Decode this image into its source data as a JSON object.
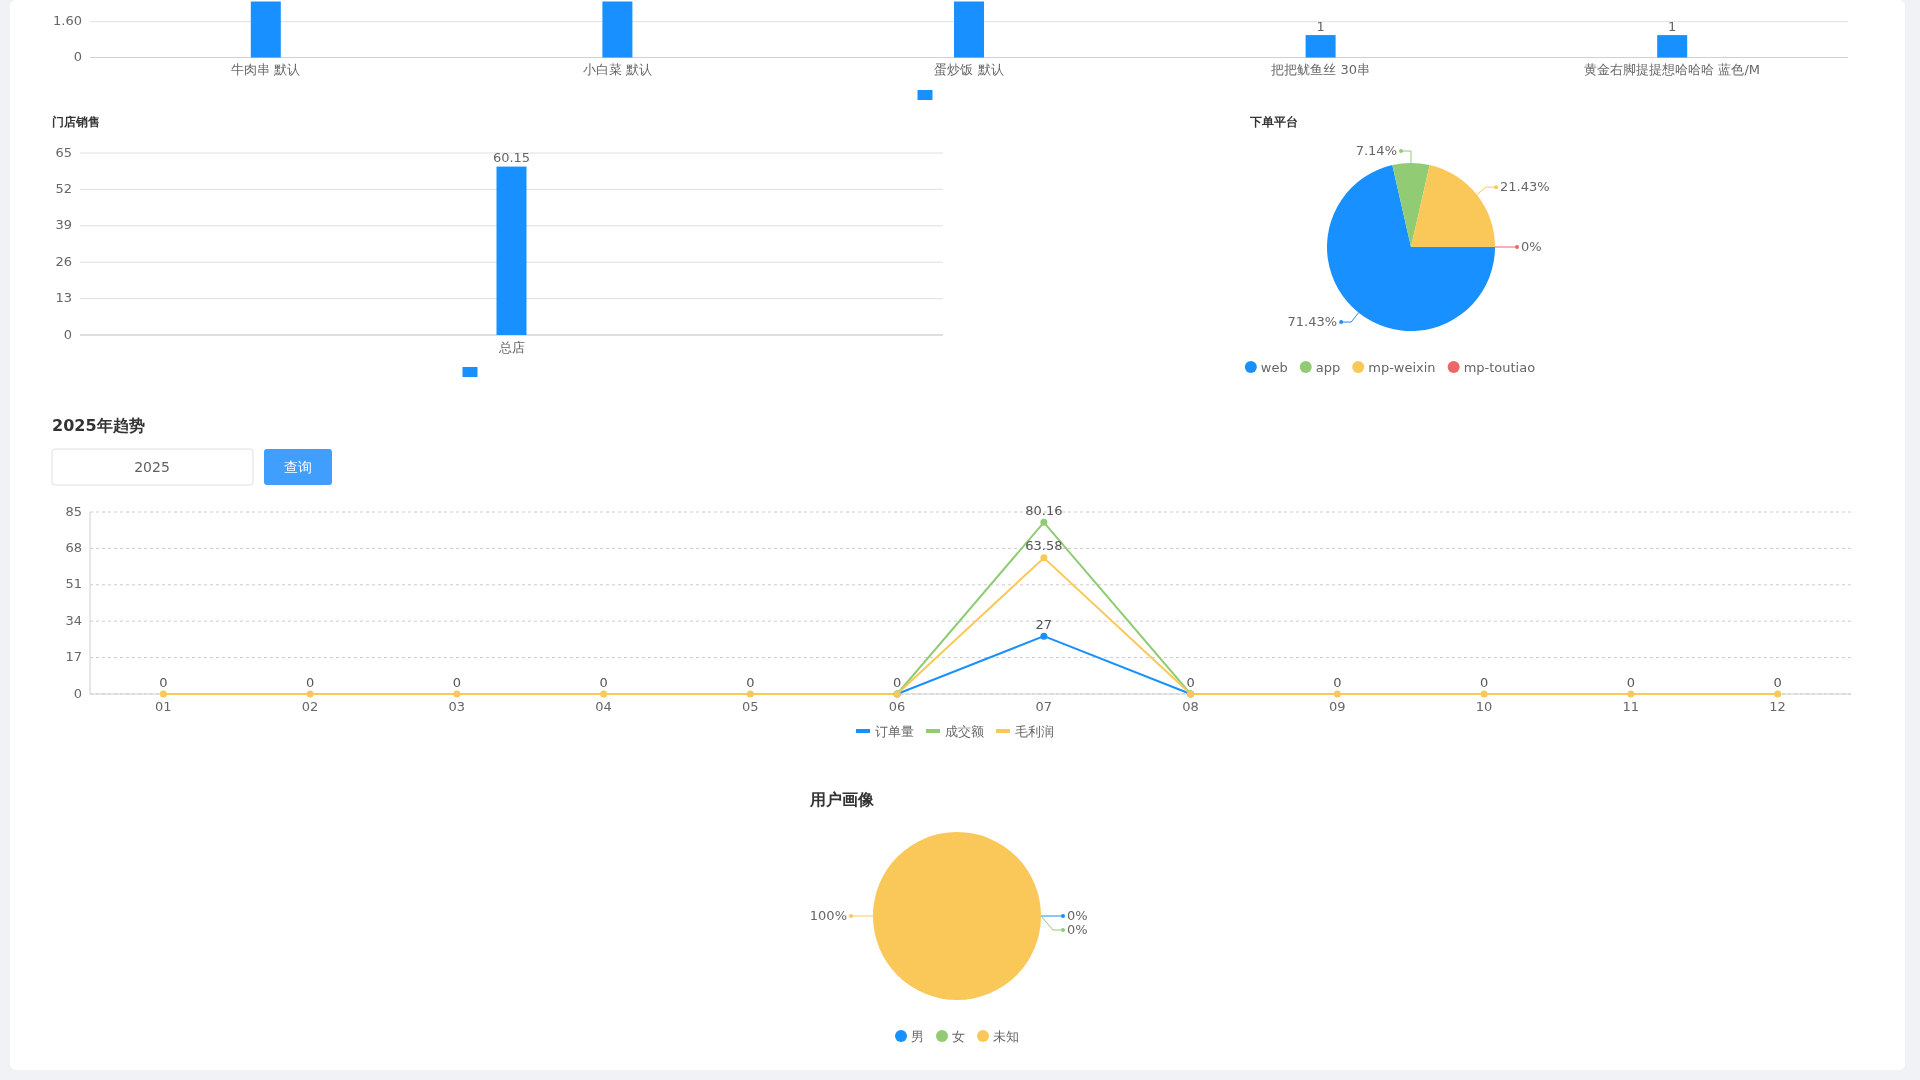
{
  "chart_data": [
    {
      "type": "bar",
      "categories": [
        "牛肉串  默认",
        "小白菜  默认",
        "蛋炒饭  默认",
        "把把鱿鱼丝  30串",
        "黄金右脚提提想哈哈哈  蓝色/M"
      ],
      "series": [
        {
          "color": "#1890ff",
          "values": [
            2.5,
            2.5,
            2.5,
            1,
            1
          ],
          "value_labels": [
            null,
            null,
            null,
            "1",
            "1"
          ]
        }
      ],
      "ylim": [
        0,
        2.5
      ],
      "yticks": [
        0,
        {
          "value": 1.6,
          "label": "1.60"
        }
      ],
      "grid": "y"
    },
    {
      "type": "bar",
      "title": "门店销售",
      "categories": [
        "总店"
      ],
      "series": [
        {
          "color": "#1890ff",
          "values": [
            60.15
          ]
        }
      ],
      "data_labels": true,
      "ylim": [
        0,
        65
      ],
      "yticks": [
        0,
        13,
        26,
        39,
        52,
        65
      ],
      "grid": "y"
    },
    {
      "type": "pie",
      "title": "下单平台",
      "categories": [
        "web",
        "app",
        "mp-weixin",
        "mp-toutiao"
      ],
      "values": [
        71.43,
        7.14,
        21.43,
        0
      ],
      "value_labels": [
        "71.43%",
        "7.14%",
        "21.43%",
        "0%"
      ],
      "colors": [
        "#1890ff",
        "#91cc75",
        "#fac858",
        "#ee6666"
      ],
      "legend": "bottom"
    },
    {
      "type": "line",
      "title": "2025年趋势",
      "annotations": [
        "2025",
        "查询"
      ],
      "categories": [
        "01",
        "02",
        "03",
        "04",
        "05",
        "06",
        "07",
        "08",
        "09",
        "10",
        "11",
        "12"
      ],
      "series": [
        {
          "name": "订单量",
          "color": "#1890ff",
          "values": [
            null,
            null,
            null,
            null,
            null,
            0,
            27,
            0,
            null,
            null,
            null,
            null
          ],
          "value_labels": [
            null,
            null,
            null,
            null,
            null,
            null,
            "27",
            null,
            null,
            null,
            null,
            null
          ]
        },
        {
          "name": "成交额",
          "color": "#91cc75",
          "values": [
            null,
            null,
            null,
            null,
            null,
            0,
            80.16,
            0,
            null,
            null,
            null,
            null
          ],
          "value_labels": [
            null,
            null,
            null,
            null,
            null,
            null,
            "80.16",
            null,
            null,
            null,
            null,
            null
          ]
        },
        {
          "name": "毛利润",
          "color": "#fac858",
          "values": [
            0,
            0,
            0,
            0,
            0,
            0,
            63.58,
            0,
            0,
            0,
            0,
            0
          ],
          "value_labels": [
            "0",
            "0",
            "0",
            "0",
            "0",
            "0",
            "63.58",
            "0",
            "0",
            "0",
            "0",
            "0"
          ]
        }
      ],
      "marker": "circle",
      "ylim": [
        0,
        85
      ],
      "yticks": [
        0,
        17,
        34,
        51,
        68,
        85
      ],
      "grid": "y",
      "legend": "bottom"
    },
    {
      "type": "pie",
      "title": "用户画像",
      "categories": [
        "男",
        "女",
        "未知"
      ],
      "values": [
        0,
        0,
        100
      ],
      "value_labels": [
        "0%",
        "0%",
        "100%"
      ],
      "colors": [
        "#1890ff",
        "#91cc75",
        "#fac858"
      ],
      "legend": "bottom"
    }
  ]
}
